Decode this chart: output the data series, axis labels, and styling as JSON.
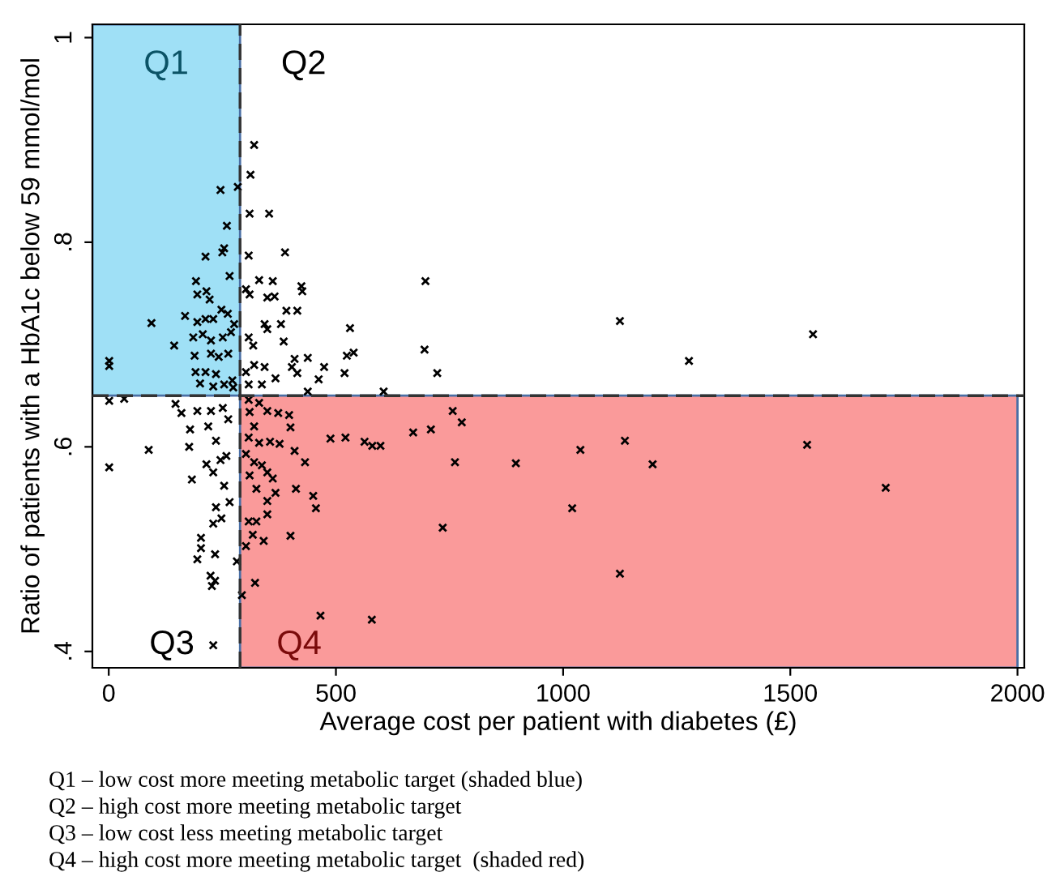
{
  "chart_data": {
    "type": "scatter",
    "xlabel": "Average cost per patient with diabetes (£)",
    "ylabel": "Ratio of patients with a HbA1c below 59 mmol/mol",
    "xlim": [
      -36,
      2015
    ],
    "ylim": [
      0.384,
      1.013
    ],
    "xticks": [
      0,
      500,
      1000,
      1500,
      2000
    ],
    "yticks": [
      {
        "value": 0.4,
        "label": ".4"
      },
      {
        "value": 0.6,
        "label": ".6"
      },
      {
        "value": 0.8,
        "label": ".8"
      },
      1
    ],
    "grid": false,
    "legend": false,
    "marker": "cross",
    "ref_lines": [
      {
        "axis": "x",
        "value": 289,
        "line_style": "dashed",
        "color": "#333333"
      },
      {
        "axis": "y",
        "value": 0.65,
        "line_style": "dashed",
        "color": "#333333"
      }
    ],
    "bands": [
      {
        "axis": "x",
        "from": -36,
        "to": 289,
        "label": "Q1",
        "color": "#9fe0f6"
      },
      {
        "axis": "x",
        "from": 289,
        "to": 2000,
        "label": "Q4",
        "color": "#fa9a9a"
      }
    ],
    "annotations": [
      "Q2",
      "Q3",
      "Q1 – low cost more meeting metabolic target (shaded blue)",
      "Q2 – high cost more meeting metabolic target",
      "Q3 – low cost less meeting metabolic target",
      "Q4 – high cost more meeting metabolic target  (shaded red)"
    ],
    "series": [
      {
        "color": "#000000",
        "x": [
          320,
          312,
          284,
          246,
          310,
          353,
          260,
          388,
          308,
          254,
          250,
          213,
          266,
          192,
          195,
          215,
          222,
          697,
          424,
          426,
          331,
          361,
          302,
          310,
          349,
          365,
          391,
          415,
          168,
          94,
          195,
          213,
          230,
          248,
          262,
          343,
          349,
          379,
          531,
          186,
          207,
          225,
          251,
          269,
          276,
          308,
          318,
          385,
          144,
          1,
          1,
          695,
          524,
          539,
          189,
          225,
          242,
          263,
          409,
          438,
          474,
          519,
          723,
          191,
          213,
          236,
          302,
          320,
          343,
          403,
          415,
          462,
          201,
          230,
          254,
          274,
          308,
          337,
          367,
          438,
          605,
          272,
          1,
          34,
          147,
          160,
          195,
          225,
          251,
          263,
          179,
          219,
          236,
          88,
          177,
          1,
          215,
          246,
          259,
          183,
          230,
          254,
          236,
          266,
          248,
          230,
          203,
          203,
          234,
          195,
          224,
          234,
          227,
          282,
          230,
          308,
          331,
          349,
          373,
          397,
          310,
          320,
          400,
          308,
          331,
          355,
          376,
          409,
          432,
          302,
          320,
          337,
          349,
          361,
          310,
          325,
          367,
          412,
          450,
          456,
          349,
          349,
          308,
          325,
          317,
          341,
          400,
          302,
          322,
          293,
          466,
          579,
          488,
          521,
          563,
          580,
          598,
          670,
          709,
          757,
          777,
          762,
          896,
          1038,
          1020,
          735,
          1125,
          1550,
          1277,
          1136,
          1197,
          1125,
          1537,
          1710
        ],
        "values": [
          0.895,
          0.866,
          0.854,
          0.851,
          0.828,
          0.828,
          0.816,
          0.79,
          0.787,
          0.794,
          0.79,
          0.786,
          0.767,
          0.762,
          0.749,
          0.752,
          0.744,
          0.762,
          0.757,
          0.752,
          0.763,
          0.762,
          0.754,
          0.749,
          0.746,
          0.747,
          0.733,
          0.733,
          0.728,
          0.721,
          0.722,
          0.725,
          0.725,
          0.734,
          0.73,
          0.72,
          0.715,
          0.72,
          0.716,
          0.707,
          0.71,
          0.704,
          0.707,
          0.712,
          0.72,
          0.707,
          0.699,
          0.703,
          0.699,
          0.684,
          0.679,
          0.695,
          0.689,
          0.692,
          0.689,
          0.691,
          0.688,
          0.691,
          0.686,
          0.687,
          0.678,
          0.672,
          0.672,
          0.673,
          0.673,
          0.671,
          0.673,
          0.68,
          0.678,
          0.678,
          0.672,
          0.666,
          0.662,
          0.659,
          0.661,
          0.658,
          0.661,
          0.661,
          0.667,
          0.654,
          0.654,
          0.665,
          0.645,
          0.647,
          0.642,
          0.633,
          0.635,
          0.635,
          0.638,
          0.627,
          0.617,
          0.62,
          0.606,
          0.597,
          0.6,
          0.58,
          0.583,
          0.587,
          0.591,
          0.568,
          0.575,
          0.562,
          0.541,
          0.546,
          0.53,
          0.525,
          0.511,
          0.501,
          0.495,
          0.49,
          0.474,
          0.469,
          0.464,
          0.488,
          0.406,
          0.646,
          0.643,
          0.635,
          0.633,
          0.631,
          0.634,
          0.62,
          0.619,
          0.609,
          0.604,
          0.605,
          0.603,
          0.596,
          0.585,
          0.593,
          0.585,
          0.582,
          0.575,
          0.569,
          0.572,
          0.559,
          0.555,
          0.559,
          0.552,
          0.54,
          0.547,
          0.534,
          0.527,
          0.527,
          0.514,
          0.508,
          0.513,
          0.503,
          0.467,
          0.455,
          0.435,
          0.431,
          0.608,
          0.609,
          0.605,
          0.601,
          0.601,
          0.614,
          0.617,
          0.635,
          0.624,
          0.585,
          0.584,
          0.597,
          0.54,
          0.521,
          0.723,
          0.71,
          0.684,
          0.606,
          0.583,
          0.476,
          0.602,
          0.56
        ]
      }
    ]
  }
}
